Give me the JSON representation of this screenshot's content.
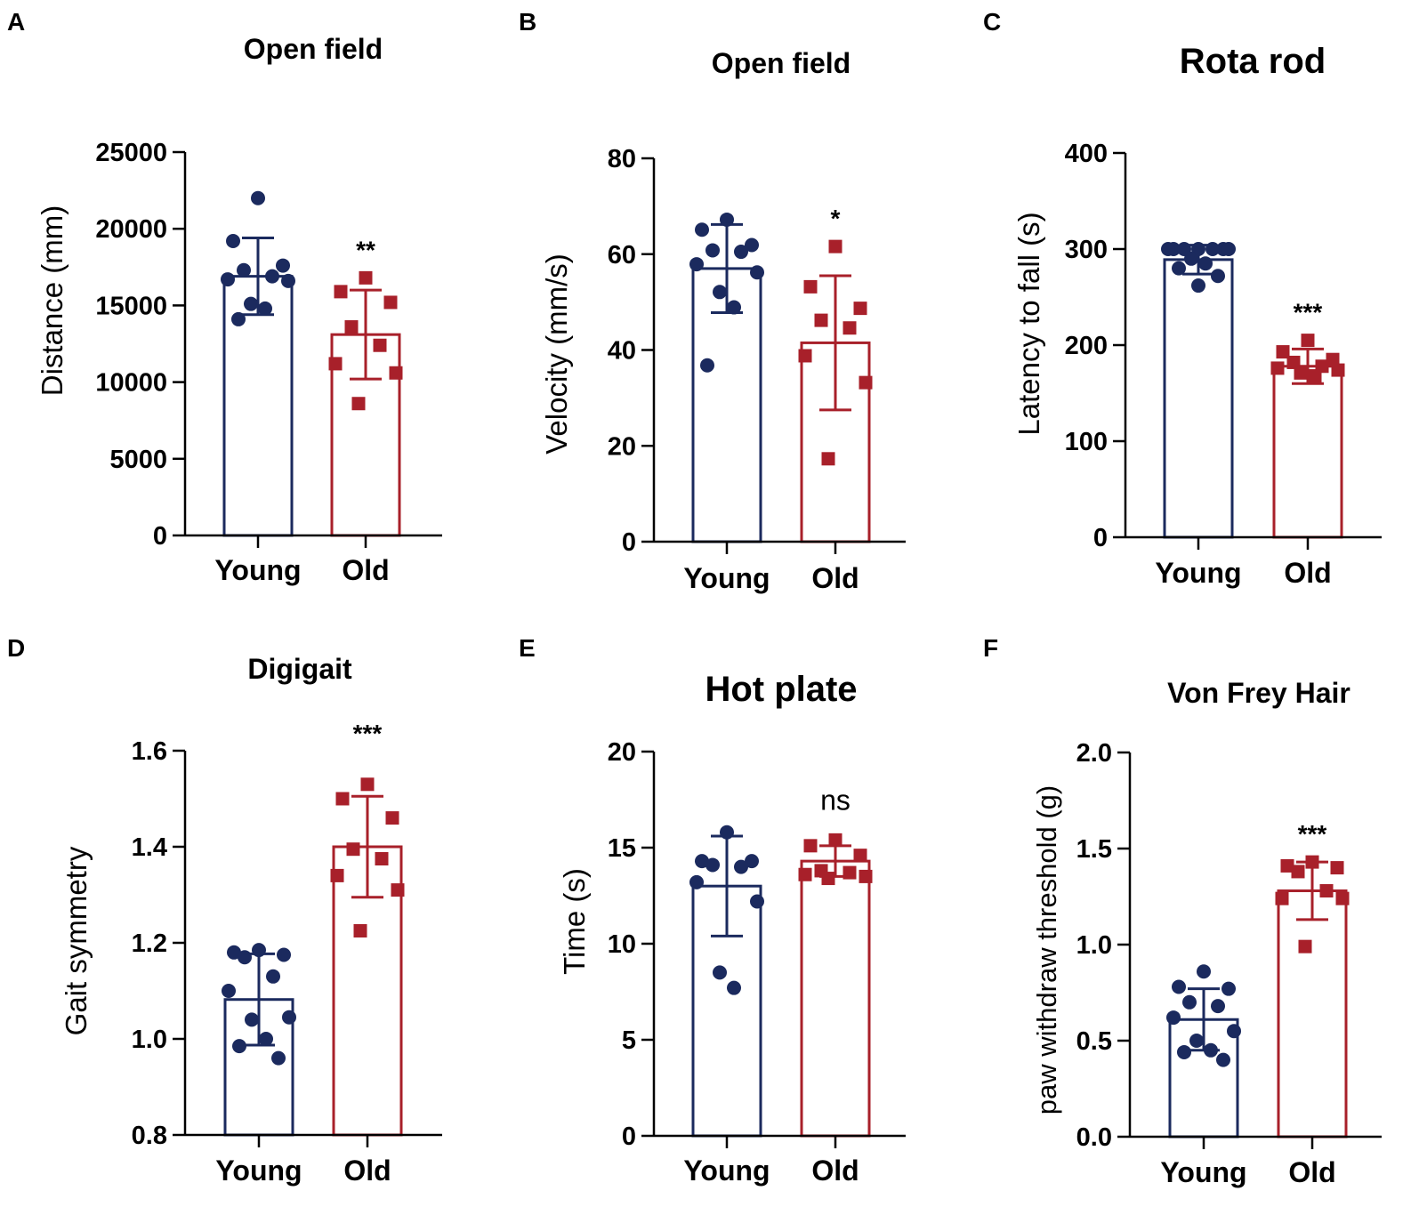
{
  "colors": {
    "young": "#1b2a5e",
    "old": "#a8202a",
    "axis": "#000000"
  },
  "chart_data": [
    {
      "panel": "A",
      "type": "bar",
      "title": "Open field",
      "ylabel": "Distance (mm)",
      "categories": [
        "Young",
        "Old"
      ],
      "ylim": [
        0,
        25000
      ],
      "yticks": [
        0,
        5000,
        10000,
        15000,
        20000,
        25000
      ],
      "means": [
        16900,
        13100
      ],
      "sd": [
        2500,
        2900
      ],
      "points": [
        [
          22000,
          19200,
          17600,
          17300,
          16900,
          16700,
          16600,
          15100,
          14800,
          14100
        ],
        [
          16800,
          15900,
          15200,
          13600,
          12400,
          11200,
          10600,
          8600
        ]
      ],
      "significance": "**"
    },
    {
      "panel": "B",
      "type": "bar",
      "title": "Open field",
      "ylabel": "Velocity (mm/s)",
      "categories": [
        "Young",
        "Old"
      ],
      "ylim": [
        0,
        80
      ],
      "yticks": [
        0,
        20,
        40,
        60,
        80
      ],
      "means": [
        57,
        41.5
      ],
      "sd": [
        9.2,
        14
      ],
      "points": [
        [
          67.2,
          65.1,
          61.9,
          60.8,
          60.5,
          57.9,
          56.2,
          52.1,
          48.9,
          36.8
        ],
        [
          61.6,
          53.2,
          48.7,
          46.2,
          44.6,
          38.8,
          33.2,
          17.3
        ]
      ],
      "significance": "*"
    },
    {
      "panel": "C",
      "type": "bar",
      "title": "Rota rod",
      "ylabel": "Latency to fall (s)",
      "categories": [
        "Young",
        "Old"
      ],
      "ylim": [
        0,
        400
      ],
      "yticks": [
        0,
        100,
        200,
        300,
        400
      ],
      "means": [
        289,
        178
      ],
      "sd": [
        15,
        18
      ],
      "points": [
        [
          300,
          300,
          300,
          300,
          300,
          300,
          300,
          290,
          285,
          280,
          272,
          262
        ],
        [
          205,
          193,
          185,
          182,
          178,
          176,
          174,
          171,
          168
        ]
      ],
      "significance": "***"
    },
    {
      "panel": "D",
      "type": "bar",
      "title": "Digigait",
      "ylabel": "Gait symmetry",
      "categories": [
        "Young",
        "Old"
      ],
      "ylim": [
        0.8,
        1.6
      ],
      "yticks": [
        0.8,
        1.0,
        1.2,
        1.4,
        1.6
      ],
      "means": [
        1.082,
        1.4
      ],
      "sd": [
        0.095,
        0.105
      ],
      "points": [
        [
          1.185,
          1.18,
          1.175,
          1.17,
          1.13,
          1.1,
          1.045,
          1.04,
          1.0,
          0.985,
          0.96
        ],
        [
          1.53,
          1.5,
          1.46,
          1.395,
          1.375,
          1.34,
          1.31,
          1.225
        ]
      ],
      "significance": "***"
    },
    {
      "panel": "E",
      "type": "bar",
      "title": "Hot plate",
      "ylabel": "Time (s)",
      "categories": [
        "Young",
        "Old"
      ],
      "ylim": [
        0,
        20
      ],
      "yticks": [
        0,
        5,
        10,
        15,
        20
      ],
      "means": [
        13,
        14.3
      ],
      "sd": [
        2.6,
        0.8
      ],
      "points": [
        [
          15.8,
          14.3,
          14.3,
          14.1,
          14.0,
          13.2,
          12.2,
          8.5,
          7.7
        ],
        [
          15.4,
          15.1,
          14.6,
          13.8,
          13.7,
          13.6,
          13.5,
          13.4
        ]
      ],
      "significance": "ns"
    },
    {
      "panel": "F",
      "type": "bar",
      "title": "Von Frey Hair",
      "ylabel": "paw withdraw threshold (g)",
      "categories": [
        "Young",
        "Old"
      ],
      "ylim": [
        0,
        2.0
      ],
      "yticks": [
        0.0,
        0.5,
        1.0,
        1.5,
        2.0
      ],
      "means": [
        0.61,
        1.28
      ],
      "sd": [
        0.16,
        0.15
      ],
      "points": [
        [
          0.86,
          0.78,
          0.77,
          0.7,
          0.68,
          0.62,
          0.55,
          0.5,
          0.45,
          0.44,
          0.4
        ],
        [
          1.43,
          1.41,
          1.4,
          1.38,
          1.28,
          1.24,
          1.24,
          0.99
        ]
      ],
      "significance": "***"
    }
  ]
}
